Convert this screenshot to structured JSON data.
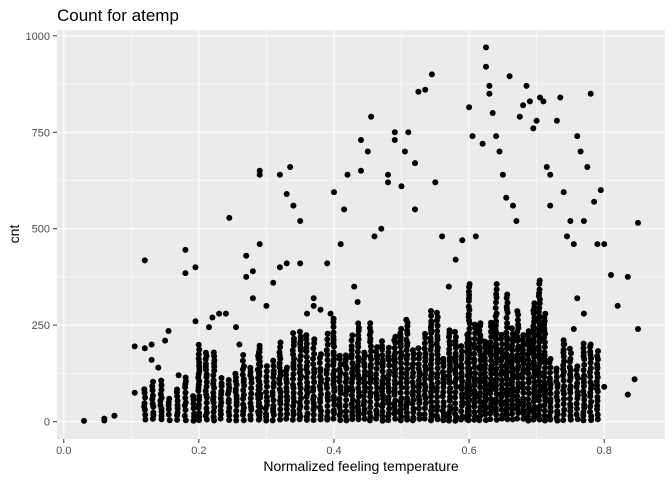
{
  "chart_data": {
    "type": "scatter",
    "title": "Count for atemp",
    "xlabel": "Normalized feeling temperature",
    "ylabel": "cnt",
    "xlim": [
      -0.01,
      0.89
    ],
    "ylim": [
      -45,
      1015
    ],
    "x_ticks": [
      0.0,
      0.2,
      0.4,
      0.6,
      0.8
    ],
    "x_tick_labels": [
      "0.0",
      "0.2",
      "0.4",
      "0.6",
      "0.8"
    ],
    "y_ticks": [
      0,
      250,
      500,
      750,
      1000
    ],
    "y_tick_labels": [
      "0",
      "250",
      "500",
      "750",
      "1000"
    ],
    "grid": true,
    "legend": "none",
    "colors": {
      "panel": "#ebebeb",
      "grid": "#ffffff",
      "point": "#000000"
    },
    "points": [
      [
        0.03,
        2
      ],
      [
        0.06,
        3
      ],
      [
        0.06,
        8
      ],
      [
        0.075,
        15
      ],
      [
        0.105,
        195
      ],
      [
        0.105,
        75
      ],
      [
        0.12,
        418
      ],
      [
        0.12,
        190
      ],
      [
        0.13,
        200
      ],
      [
        0.13,
        160
      ],
      [
        0.14,
        140
      ],
      [
        0.15,
        210
      ],
      [
        0.155,
        235
      ],
      [
        0.17,
        120
      ],
      [
        0.18,
        445
      ],
      [
        0.18,
        385
      ],
      [
        0.195,
        400
      ],
      [
        0.195,
        260
      ],
      [
        0.215,
        245
      ],
      [
        0.22,
        270
      ],
      [
        0.23,
        280
      ],
      [
        0.24,
        280
      ],
      [
        0.245,
        528
      ],
      [
        0.255,
        245
      ],
      [
        0.26,
        200
      ],
      [
        0.27,
        430
      ],
      [
        0.27,
        375
      ],
      [
        0.28,
        390
      ],
      [
        0.28,
        320
      ],
      [
        0.29,
        650
      ],
      [
        0.29,
        640
      ],
      [
        0.29,
        460
      ],
      [
        0.3,
        300
      ],
      [
        0.31,
        360
      ],
      [
        0.32,
        640
      ],
      [
        0.32,
        400
      ],
      [
        0.33,
        410
      ],
      [
        0.33,
        590
      ],
      [
        0.335,
        660
      ],
      [
        0.34,
        560
      ],
      [
        0.35,
        520
      ],
      [
        0.35,
        410
      ],
      [
        0.36,
        280
      ],
      [
        0.37,
        300
      ],
      [
        0.37,
        320
      ],
      [
        0.38,
        290
      ],
      [
        0.39,
        410
      ],
      [
        0.395,
        280
      ],
      [
        0.4,
        595
      ],
      [
        0.41,
        460
      ],
      [
        0.415,
        550
      ],
      [
        0.42,
        640
      ],
      [
        0.43,
        350
      ],
      [
        0.435,
        310
      ],
      [
        0.44,
        650
      ],
      [
        0.44,
        730
      ],
      [
        0.45,
        700
      ],
      [
        0.455,
        790
      ],
      [
        0.46,
        480
      ],
      [
        0.47,
        500
      ],
      [
        0.48,
        620
      ],
      [
        0.48,
        640
      ],
      [
        0.49,
        750
      ],
      [
        0.49,
        730
      ],
      [
        0.5,
        610
      ],
      [
        0.505,
        700
      ],
      [
        0.51,
        750
      ],
      [
        0.52,
        670
      ],
      [
        0.52,
        550
      ],
      [
        0.525,
        855
      ],
      [
        0.535,
        860
      ],
      [
        0.545,
        900
      ],
      [
        0.55,
        620
      ],
      [
        0.56,
        480
      ],
      [
        0.57,
        350
      ],
      [
        0.58,
        420
      ],
      [
        0.59,
        470
      ],
      [
        0.6,
        815
      ],
      [
        0.605,
        740
      ],
      [
        0.61,
        480
      ],
      [
        0.62,
        720
      ],
      [
        0.625,
        970
      ],
      [
        0.625,
        920
      ],
      [
        0.63,
        870
      ],
      [
        0.63,
        850
      ],
      [
        0.635,
        800
      ],
      [
        0.64,
        740
      ],
      [
        0.645,
        700
      ],
      [
        0.65,
        640
      ],
      [
        0.655,
        580
      ],
      [
        0.66,
        895
      ],
      [
        0.665,
        560
      ],
      [
        0.67,
        520
      ],
      [
        0.675,
        790
      ],
      [
        0.68,
        820
      ],
      [
        0.685,
        870
      ],
      [
        0.69,
        830
      ],
      [
        0.695,
        760
      ],
      [
        0.7,
        780
      ],
      [
        0.705,
        840
      ],
      [
        0.71,
        830
      ],
      [
        0.715,
        660
      ],
      [
        0.72,
        640
      ],
      [
        0.72,
        560
      ],
      [
        0.73,
        780
      ],
      [
        0.735,
        840
      ],
      [
        0.74,
        595
      ],
      [
        0.745,
        480
      ],
      [
        0.75,
        520
      ],
      [
        0.755,
        460
      ],
      [
        0.76,
        740
      ],
      [
        0.765,
        700
      ],
      [
        0.77,
        520
      ],
      [
        0.775,
        660
      ],
      [
        0.78,
        850
      ],
      [
        0.785,
        570
      ],
      [
        0.79,
        460
      ],
      [
        0.795,
        600
      ],
      [
        0.8,
        460
      ],
      [
        0.81,
        380
      ],
      [
        0.82,
        300
      ],
      [
        0.835,
        375
      ],
      [
        0.845,
        110
      ],
      [
        0.85,
        515
      ],
      [
        0.85,
        240
      ],
      [
        0.835,
        70
      ],
      [
        0.8,
        90
      ],
      [
        0.79,
        140
      ],
      [
        0.78,
        200
      ],
      [
        0.77,
        280
      ],
      [
        0.76,
        320
      ],
      [
        0.755,
        240
      ],
      [
        0.74,
        200
      ]
    ],
    "dense_bands": [
      {
        "x0": 0.12,
        "x1": 0.2,
        "step": 0.012,
        "yMax": 120
      },
      {
        "x0": 0.2,
        "x1": 0.29,
        "step": 0.011,
        "yMax": 200
      },
      {
        "x0": 0.29,
        "x1": 0.4,
        "step": 0.01,
        "yMax": 240
      },
      {
        "x0": 0.4,
        "x1": 0.6,
        "step": 0.009,
        "yMax": 300
      },
      {
        "x0": 0.6,
        "x1": 0.72,
        "step": 0.008,
        "yMax": 380
      },
      {
        "x0": 0.72,
        "x1": 0.8,
        "step": 0.01,
        "yMax": 260
      }
    ]
  }
}
